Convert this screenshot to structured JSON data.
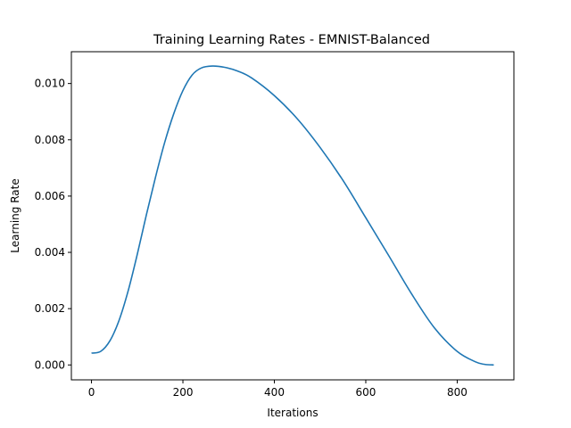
{
  "chart_data": {
    "type": "line",
    "title": "Training Learning Rates - EMNIST-Balanced",
    "xlabel": "Iterations",
    "ylabel": "Learning Rate",
    "xlim": [
      -44,
      924
    ],
    "ylim": [
      -0.00053,
      0.01113
    ],
    "xticks": [
      0,
      200,
      400,
      600,
      800
    ],
    "xtick_labels": [
      "0",
      "200",
      "400",
      "600",
      "800"
    ],
    "yticks": [
      0.0,
      0.002,
      0.004,
      0.006,
      0.008,
      0.01
    ],
    "ytick_labels": [
      "0.000",
      "0.002",
      "0.004",
      "0.006",
      "0.008",
      "0.010"
    ],
    "grid": false,
    "legend": "none",
    "series": [
      {
        "color": "#1f77b4",
        "x": [
          0,
          20,
          40,
          60,
          80,
          100,
          120,
          140,
          160,
          180,
          200,
          220,
          240,
          264,
          290,
          320,
          350,
          400,
          450,
          500,
          550,
          600,
          650,
          700,
          750,
          800,
          840,
          860,
          880
        ],
        "y": [
          0.00042,
          0.00048,
          0.00085,
          0.00157,
          0.00262,
          0.00392,
          0.00533,
          0.00667,
          0.0079,
          0.00893,
          0.00975,
          0.0103,
          0.01055,
          0.01062,
          0.01058,
          0.01044,
          0.0102,
          0.00957,
          0.00875,
          0.00773,
          0.00656,
          0.00523,
          0.00389,
          0.00253,
          0.00132,
          0.00048,
          0.00011,
          2e-05,
          0.0
        ]
      }
    ]
  }
}
